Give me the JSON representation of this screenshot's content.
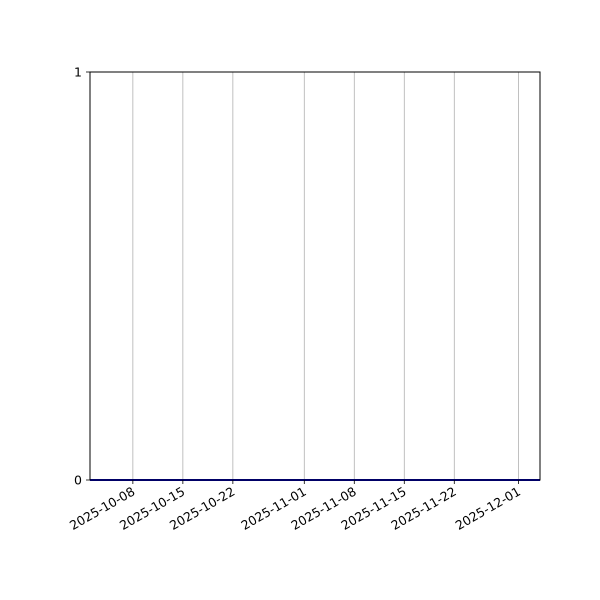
{
  "chart_data": {
    "type": "line",
    "title": "",
    "xlabel": "",
    "ylabel": "",
    "x_axis_type": "date",
    "xlim": [
      "2025-10-02",
      "2025-12-04"
    ],
    "ylim": [
      0,
      1
    ],
    "x_ticks": [
      "2025-10-08",
      "2025-10-15",
      "2025-10-22",
      "2025-11-01",
      "2025-11-08",
      "2025-11-15",
      "2025-11-22",
      "2025-12-01"
    ],
    "y_ticks": [
      "0",
      "1"
    ],
    "grid": "vertical",
    "series": [
      {
        "color": "#0000cc",
        "x": [
          "2025-10-02",
          "2025-12-04"
        ],
        "y": [
          0,
          0
        ]
      }
    ]
  }
}
